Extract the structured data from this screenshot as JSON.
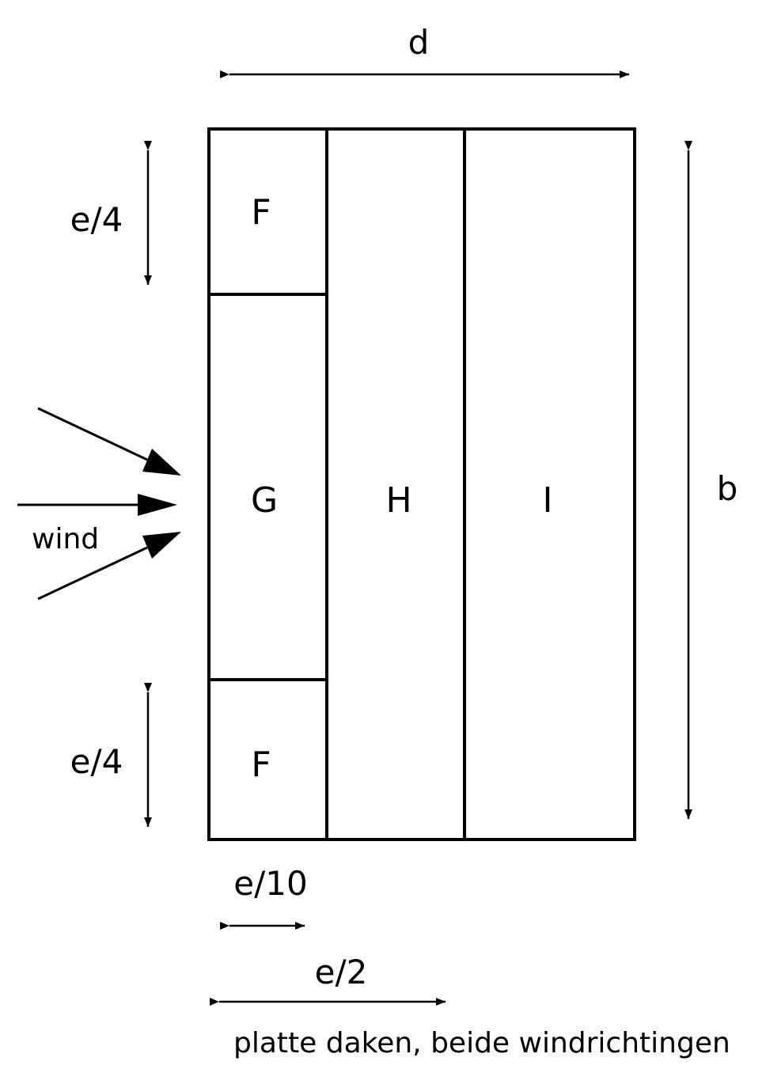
{
  "dimensions": {
    "d": "d",
    "b": "b",
    "e4_top": "e/4",
    "e4_bottom": "e/4",
    "e10": "e/10",
    "e2": "e/2"
  },
  "zones": {
    "f_top": "F",
    "g": "G",
    "h": "H",
    "i": "I",
    "f_bottom": "F"
  },
  "wind_label": "wind",
  "caption": "platte daken, beide windrichtingen",
  "colors": {
    "stroke": "#000000",
    "background": "#ffffff"
  }
}
